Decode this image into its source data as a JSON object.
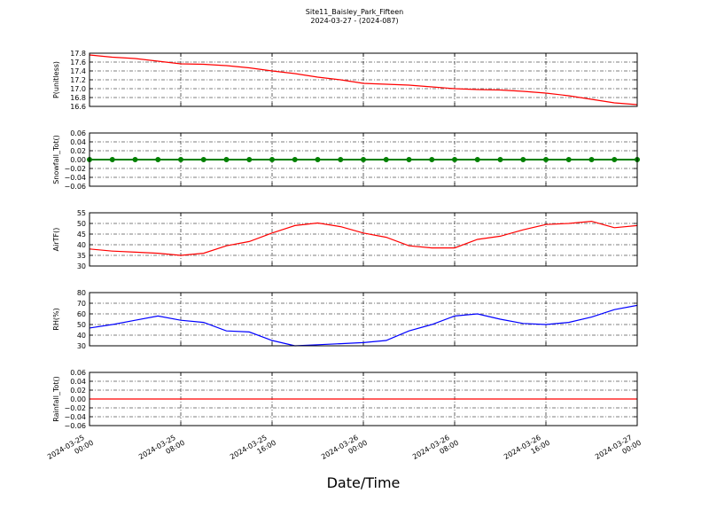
{
  "title": "Site11_Baisley_Park_Fifteen",
  "subtitle": "2024-03-27 - (2024-087)",
  "xlabel": "Date/Time",
  "chart_data": [
    {
      "type": "line",
      "ylabel": "P(unitless)",
      "x": [
        "2024-03-25 00:00",
        "2024-03-25 02:00",
        "2024-03-25 04:00",
        "2024-03-25 06:00",
        "2024-03-25 08:00",
        "2024-03-25 10:00",
        "2024-03-25 12:00",
        "2024-03-25 14:00",
        "2024-03-25 16:00",
        "2024-03-25 18:00",
        "2024-03-25 20:00",
        "2024-03-25 22:00",
        "2024-03-26 00:00",
        "2024-03-26 02:00",
        "2024-03-26 04:00",
        "2024-03-26 06:00",
        "2024-03-26 08:00",
        "2024-03-26 10:00",
        "2024-03-26 12:00",
        "2024-03-26 14:00",
        "2024-03-26 16:00",
        "2024-03-26 18:00",
        "2024-03-26 20:00",
        "2024-03-26 22:00",
        "2024-03-27 00:00"
      ],
      "series": [
        {
          "name": "P",
          "color": "#ff0000",
          "values": [
            17.76,
            17.71,
            17.68,
            17.62,
            17.56,
            17.55,
            17.52,
            17.47,
            17.4,
            17.34,
            17.26,
            17.2,
            17.12,
            17.1,
            17.08,
            17.04,
            17.0,
            16.98,
            16.97,
            16.94,
            16.9,
            16.84,
            16.76,
            16.68,
            16.64
          ]
        }
      ],
      "xlim": [
        "2024-03-25 00:00",
        "2024-03-27 00:00"
      ],
      "xticks": [
        "2024-03-25 00:00",
        "2024-03-25 08:00",
        "2024-03-25 16:00",
        "2024-03-26 00:00",
        "2024-03-26 08:00",
        "2024-03-26 16:00",
        "2024-03-27 00:00"
      ],
      "ylim": [
        16.6,
        17.8
      ],
      "yticks": [
        16.6,
        16.8,
        {
          "value": 17,
          "label": "17.0"
        },
        17.2,
        17.4,
        17.6,
        17.8
      ],
      "grid": true
    },
    {
      "type": "line",
      "ylabel": "Snowfall_Tot()",
      "x": [
        "2024-03-25 00:00",
        "2024-03-25 02:00",
        "2024-03-25 04:00",
        "2024-03-25 06:00",
        "2024-03-25 08:00",
        "2024-03-25 10:00",
        "2024-03-25 12:00",
        "2024-03-25 14:00",
        "2024-03-25 16:00",
        "2024-03-25 18:00",
        "2024-03-25 20:00",
        "2024-03-25 22:00",
        "2024-03-26 00:00",
        "2024-03-26 02:00",
        "2024-03-26 04:00",
        "2024-03-26 06:00",
        "2024-03-26 08:00",
        "2024-03-26 10:00",
        "2024-03-26 12:00",
        "2024-03-26 14:00",
        "2024-03-26 16:00",
        "2024-03-26 18:00",
        "2024-03-26 20:00",
        "2024-03-26 22:00",
        "2024-03-27 00:00"
      ],
      "series": [
        {
          "name": "Snowfall_Tot",
          "color": "#008000",
          "marker": true,
          "values": [
            0,
            0,
            0,
            0,
            0,
            0,
            0,
            0,
            0,
            0,
            0,
            0,
            0,
            0,
            0,
            0,
            0,
            0,
            0,
            0,
            0,
            0,
            0,
            0,
            0
          ]
        }
      ],
      "xlim": [
        "2024-03-25 00:00",
        "2024-03-27 00:00"
      ],
      "xticks": [
        "2024-03-25 00:00",
        "2024-03-25 08:00",
        "2024-03-25 16:00",
        "2024-03-26 00:00",
        "2024-03-26 08:00",
        "2024-03-26 16:00",
        "2024-03-27 00:00"
      ],
      "ylim": [
        -0.06,
        0.06
      ],
      "yticks": [
        {
          "value": -0.06,
          "label": "−0.06"
        },
        {
          "value": -0.04,
          "label": "−0.04"
        },
        {
          "value": -0.02,
          "label": "−0.02"
        },
        {
          "value": 0,
          "label": "0.00"
        },
        0.02,
        0.04,
        0.06
      ],
      "grid": true
    },
    {
      "type": "line",
      "ylabel": "AirTF()",
      "x": [
        "2024-03-25 00:00",
        "2024-03-25 02:00",
        "2024-03-25 04:00",
        "2024-03-25 06:00",
        "2024-03-25 08:00",
        "2024-03-25 10:00",
        "2024-03-25 12:00",
        "2024-03-25 14:00",
        "2024-03-25 16:00",
        "2024-03-25 18:00",
        "2024-03-25 20:00",
        "2024-03-25 22:00",
        "2024-03-26 00:00",
        "2024-03-26 02:00",
        "2024-03-26 04:00",
        "2024-03-26 06:00",
        "2024-03-26 08:00",
        "2024-03-26 10:00",
        "2024-03-26 12:00",
        "2024-03-26 14:00",
        "2024-03-26 16:00",
        "2024-03-26 18:00",
        "2024-03-26 20:00",
        "2024-03-26 22:00",
        "2024-03-27 00:00"
      ],
      "series": [
        {
          "name": "AirTF",
          "color": "#ff0000",
          "values": [
            38,
            37,
            36.5,
            36,
            35,
            36,
            39.5,
            41.5,
            45.5,
            49,
            50.2,
            48.5,
            45.5,
            43.5,
            39.5,
            38.5,
            38.5,
            42.5,
            44,
            47,
            49.5,
            50,
            51,
            48,
            49
          ]
        }
      ],
      "xlim": [
        "2024-03-25 00:00",
        "2024-03-27 00:00"
      ],
      "xticks": [
        "2024-03-25 00:00",
        "2024-03-25 08:00",
        "2024-03-25 16:00",
        "2024-03-26 00:00",
        "2024-03-26 08:00",
        "2024-03-26 16:00",
        "2024-03-27 00:00"
      ],
      "ylim": [
        30,
        55
      ],
      "yticks": [
        30,
        35,
        40,
        45,
        50,
        55
      ],
      "grid": true
    },
    {
      "type": "line",
      "ylabel": "RH(%)",
      "x": [
        "2024-03-25 00:00",
        "2024-03-25 02:00",
        "2024-03-25 04:00",
        "2024-03-25 06:00",
        "2024-03-25 08:00",
        "2024-03-25 10:00",
        "2024-03-25 12:00",
        "2024-03-25 14:00",
        "2024-03-25 16:00",
        "2024-03-25 18:00",
        "2024-03-25 20:00",
        "2024-03-25 22:00",
        "2024-03-26 00:00",
        "2024-03-26 02:00",
        "2024-03-26 04:00",
        "2024-03-26 06:00",
        "2024-03-26 08:00",
        "2024-03-26 10:00",
        "2024-03-26 12:00",
        "2024-03-26 14:00",
        "2024-03-26 16:00",
        "2024-03-26 18:00",
        "2024-03-26 20:00",
        "2024-03-26 22:00",
        "2024-03-27 00:00"
      ],
      "series": [
        {
          "name": "RH",
          "color": "#0000ff",
          "values": [
            46.7,
            50,
            54,
            58,
            54,
            52,
            44,
            43,
            35,
            30,
            31,
            32,
            33,
            35,
            44,
            50,
            58,
            60,
            55,
            51,
            50,
            52,
            57,
            64,
            68
          ]
        }
      ],
      "xlim": [
        "2024-03-25 00:00",
        "2024-03-27 00:00"
      ],
      "xticks": [
        "2024-03-25 00:00",
        "2024-03-25 08:00",
        "2024-03-25 16:00",
        "2024-03-26 00:00",
        "2024-03-26 08:00",
        "2024-03-26 16:00",
        "2024-03-27 00:00"
      ],
      "ylim": [
        30,
        80
      ],
      "yticks": [
        30,
        40,
        50,
        60,
        70,
        80
      ],
      "grid": true
    },
    {
      "type": "line",
      "ylabel": "Rainfall_Tot()",
      "x": [
        "2024-03-25 00:00",
        "2024-03-25 02:00",
        "2024-03-25 04:00",
        "2024-03-25 06:00",
        "2024-03-25 08:00",
        "2024-03-25 10:00",
        "2024-03-25 12:00",
        "2024-03-25 14:00",
        "2024-03-25 16:00",
        "2024-03-25 18:00",
        "2024-03-25 20:00",
        "2024-03-25 22:00",
        "2024-03-26 00:00",
        "2024-03-26 02:00",
        "2024-03-26 04:00",
        "2024-03-26 06:00",
        "2024-03-26 08:00",
        "2024-03-26 10:00",
        "2024-03-26 12:00",
        "2024-03-26 14:00",
        "2024-03-26 16:00",
        "2024-03-26 18:00",
        "2024-03-26 20:00",
        "2024-03-26 22:00",
        "2024-03-27 00:00"
      ],
      "series": [
        {
          "name": "Rainfall_Tot",
          "color": "#ff0000",
          "values": [
            0,
            0,
            0,
            0,
            0,
            0,
            0,
            0,
            0,
            0,
            0,
            0,
            0,
            0,
            0,
            0,
            0,
            0,
            0,
            0,
            0,
            0,
            0,
            0,
            0
          ]
        }
      ],
      "xlim": [
        "2024-03-25 00:00",
        "2024-03-27 00:00"
      ],
      "xticks": [
        "2024-03-25 00:00",
        "2024-03-25 08:00",
        "2024-03-25 16:00",
        "2024-03-26 00:00",
        "2024-03-26 08:00",
        "2024-03-26 16:00",
        "2024-03-27 00:00"
      ],
      "xticklabels": true,
      "ylim": [
        -0.06,
        0.06
      ],
      "yticks": [
        {
          "value": -0.06,
          "label": "−0.06"
        },
        {
          "value": -0.04,
          "label": "−0.04"
        },
        {
          "value": -0.02,
          "label": "−0.02"
        },
        {
          "value": 0,
          "label": "0.00"
        },
        0.02,
        0.04,
        0.06
      ],
      "grid": true
    }
  ]
}
